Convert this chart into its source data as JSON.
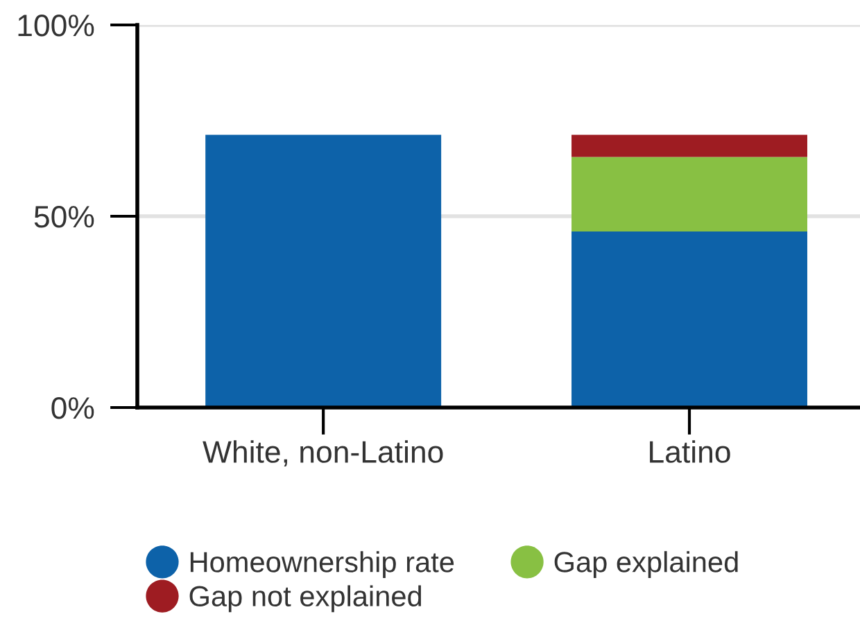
{
  "chart_data": {
    "type": "bar",
    "stacked": true,
    "categories": [
      "White, non-Latino",
      "Latino"
    ],
    "series": [
      {
        "name": "Homeownership rate",
        "color": "#0d62a9",
        "values": [
          71.3,
          46
        ]
      },
      {
        "name": "Gap explained",
        "color": "#88c043",
        "values": [
          null,
          19.5
        ]
      },
      {
        "name": "Gap not explained",
        "color": "#9e1c22",
        "values": [
          null,
          5.8
        ]
      }
    ],
    "ylim": [
      0,
      100
    ],
    "yticks": [
      {
        "value": 0,
        "label": "0%"
      },
      {
        "value": 50,
        "label": "50%"
      },
      {
        "value": 100,
        "label": "100%"
      }
    ],
    "grid": "y",
    "legend": "bottom",
    "marker": "circle"
  }
}
